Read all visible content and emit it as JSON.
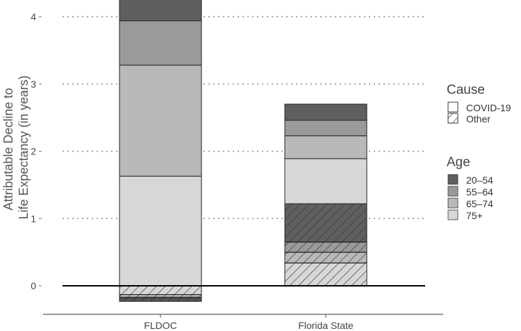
{
  "chart_data": {
    "type": "bar",
    "stacked": true,
    "title": "",
    "xlabel": "",
    "ylabel": "Attributable Decline to Life Expectancy (in years)",
    "ylabel_lines": [
      "Attributable Decline to",
      "Life Expectancy (in years)"
    ],
    "categories": [
      "FLDOC",
      "Florida State"
    ],
    "ylim": [
      -0.45,
      4.3
    ],
    "yticks": [
      "0",
      "1",
      "2",
      "3",
      "4"
    ],
    "ytick_values": [
      0,
      1,
      2,
      3,
      4
    ],
    "grid": "horizontal dotted",
    "zero_line": true,
    "legend_position": "right",
    "legend": {
      "cause_title": "Cause",
      "cause_items": [
        {
          "label": "COVID-19",
          "pattern": "solid"
        },
        {
          "label": "Other",
          "pattern": "hatch"
        }
      ],
      "age_title": "Age",
      "age_items": [
        {
          "label": "20–54",
          "color": "#5f5f5f"
        },
        {
          "label": "55–64",
          "color": "#9a9a9a"
        },
        {
          "label": "65–74",
          "color": "#b9b9b9"
        },
        {
          "label": "75+",
          "color": "#d7d7d7"
        }
      ]
    },
    "series": [
      {
        "category": "FLDOC",
        "cause": "COVID-19",
        "age": "75+",
        "values_range": [
          0.0,
          1.63
        ],
        "color": "#d7d7d7",
        "hatch": false
      },
      {
        "category": "FLDOC",
        "cause": "COVID-19",
        "age": "65–74",
        "values_range": [
          1.63,
          3.28
        ],
        "color": "#b9b9b9",
        "hatch": false
      },
      {
        "category": "FLDOC",
        "cause": "COVID-19",
        "age": "55–64",
        "values_range": [
          3.28,
          3.94
        ],
        "color": "#9a9a9a",
        "hatch": false
      },
      {
        "category": "FLDOC",
        "cause": "COVID-19",
        "age": "20–54",
        "values_range": [
          3.94,
          4.26
        ],
        "color": "#5f5f5f",
        "hatch": false
      },
      {
        "category": "FLDOC",
        "cause": "Other",
        "age": "75+",
        "values_range": [
          -0.13,
          0.0
        ],
        "color": "#d7d7d7",
        "hatch": true
      },
      {
        "category": "FLDOC",
        "cause": "Other",
        "age": "65–74",
        "values_range": [
          -0.17,
          -0.13
        ],
        "color": "#b9b9b9",
        "hatch": true
      },
      {
        "category": "FLDOC",
        "cause": "Other",
        "age": "55–64",
        "values_range": [
          -0.19,
          -0.17
        ],
        "color": "#9a9a9a",
        "hatch": true
      },
      {
        "category": "FLDOC",
        "cause": "Other",
        "age": "20–54",
        "values_range": [
          -0.23,
          -0.19
        ],
        "color": "#5f5f5f",
        "hatch": true
      },
      {
        "category": "Florida State",
        "cause": "Other",
        "age": "75+",
        "values_range": [
          0.0,
          0.34
        ],
        "color": "#d7d7d7",
        "hatch": true
      },
      {
        "category": "Florida State",
        "cause": "Other",
        "age": "65–74",
        "values_range": [
          0.34,
          0.5
        ],
        "color": "#b9b9b9",
        "hatch": true
      },
      {
        "category": "Florida State",
        "cause": "Other",
        "age": "55–64",
        "values_range": [
          0.5,
          0.65
        ],
        "color": "#9a9a9a",
        "hatch": true
      },
      {
        "category": "Florida State",
        "cause": "Other",
        "age": "20–54",
        "values_range": [
          0.65,
          1.22
        ],
        "color": "#5f5f5f",
        "hatch": true
      },
      {
        "category": "Florida State",
        "cause": "COVID-19",
        "age": "75+",
        "values_range": [
          1.22,
          1.89
        ],
        "color": "#d7d7d7",
        "hatch": false
      },
      {
        "category": "Florida State",
        "cause": "COVID-19",
        "age": "65–74",
        "values_range": [
          1.89,
          2.23
        ],
        "color": "#b9b9b9",
        "hatch": false
      },
      {
        "category": "Florida State",
        "cause": "COVID-19",
        "age": "55–64",
        "values_range": [
          2.23,
          2.46
        ],
        "color": "#9a9a9a",
        "hatch": false
      },
      {
        "category": "Florida State",
        "cause": "COVID-19",
        "age": "20–54",
        "values_range": [
          2.46,
          2.7
        ],
        "color": "#5f5f5f",
        "hatch": false
      }
    ]
  }
}
